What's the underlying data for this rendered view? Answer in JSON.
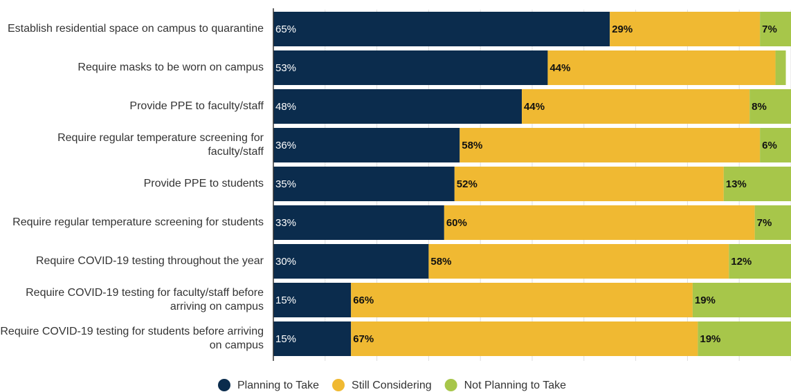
{
  "chart_data": {
    "type": "stacked-bar-horizontal",
    "categories": [
      "Establish residential space on campus to quarantine",
      "Require masks to be worn on campus",
      "Provide PPE to faculty/staff",
      "Require regular temperature screening for faculty/staff",
      "Provide PPE to students",
      "Require regular temperature screening for students",
      "Require COVID-19 testing throughout the year",
      "Require COVID-19 testing for faculty/staff before arriving on campus",
      "Require COVID-19 testing for students before arriving on campus"
    ],
    "series": [
      {
        "name": "Planning to Take",
        "color": "#0b2c4d",
        "values": [
          65,
          53,
          48,
          36,
          35,
          33,
          30,
          15,
          15
        ],
        "value_labels": [
          "65%",
          "53%",
          "48%",
          "36%",
          "35%",
          "33%",
          "30%",
          "15%",
          "15%"
        ]
      },
      {
        "name": "Still Considering",
        "color": "#f0b932",
        "values": [
          29,
          44,
          44,
          58,
          52,
          60,
          58,
          66,
          67
        ],
        "value_labels": [
          "29%",
          "44%",
          "44%",
          "58%",
          "52%",
          "60%",
          "58%",
          "66%",
          "67%"
        ]
      },
      {
        "name": "Not Planning to Take",
        "color": "#a7c64a",
        "values": [
          7,
          2,
          8,
          6,
          13,
          7,
          12,
          19,
          19
        ],
        "value_labels": [
          "7%",
          null,
          "8%",
          "6%",
          "13%",
          "7%",
          "12%",
          "19%",
          "19%"
        ]
      }
    ],
    "xlim": [
      0,
      100
    ],
    "xticks": [
      0,
      10,
      20,
      30,
      40,
      50,
      60,
      70,
      80,
      90,
      100
    ],
    "grid": true
  }
}
